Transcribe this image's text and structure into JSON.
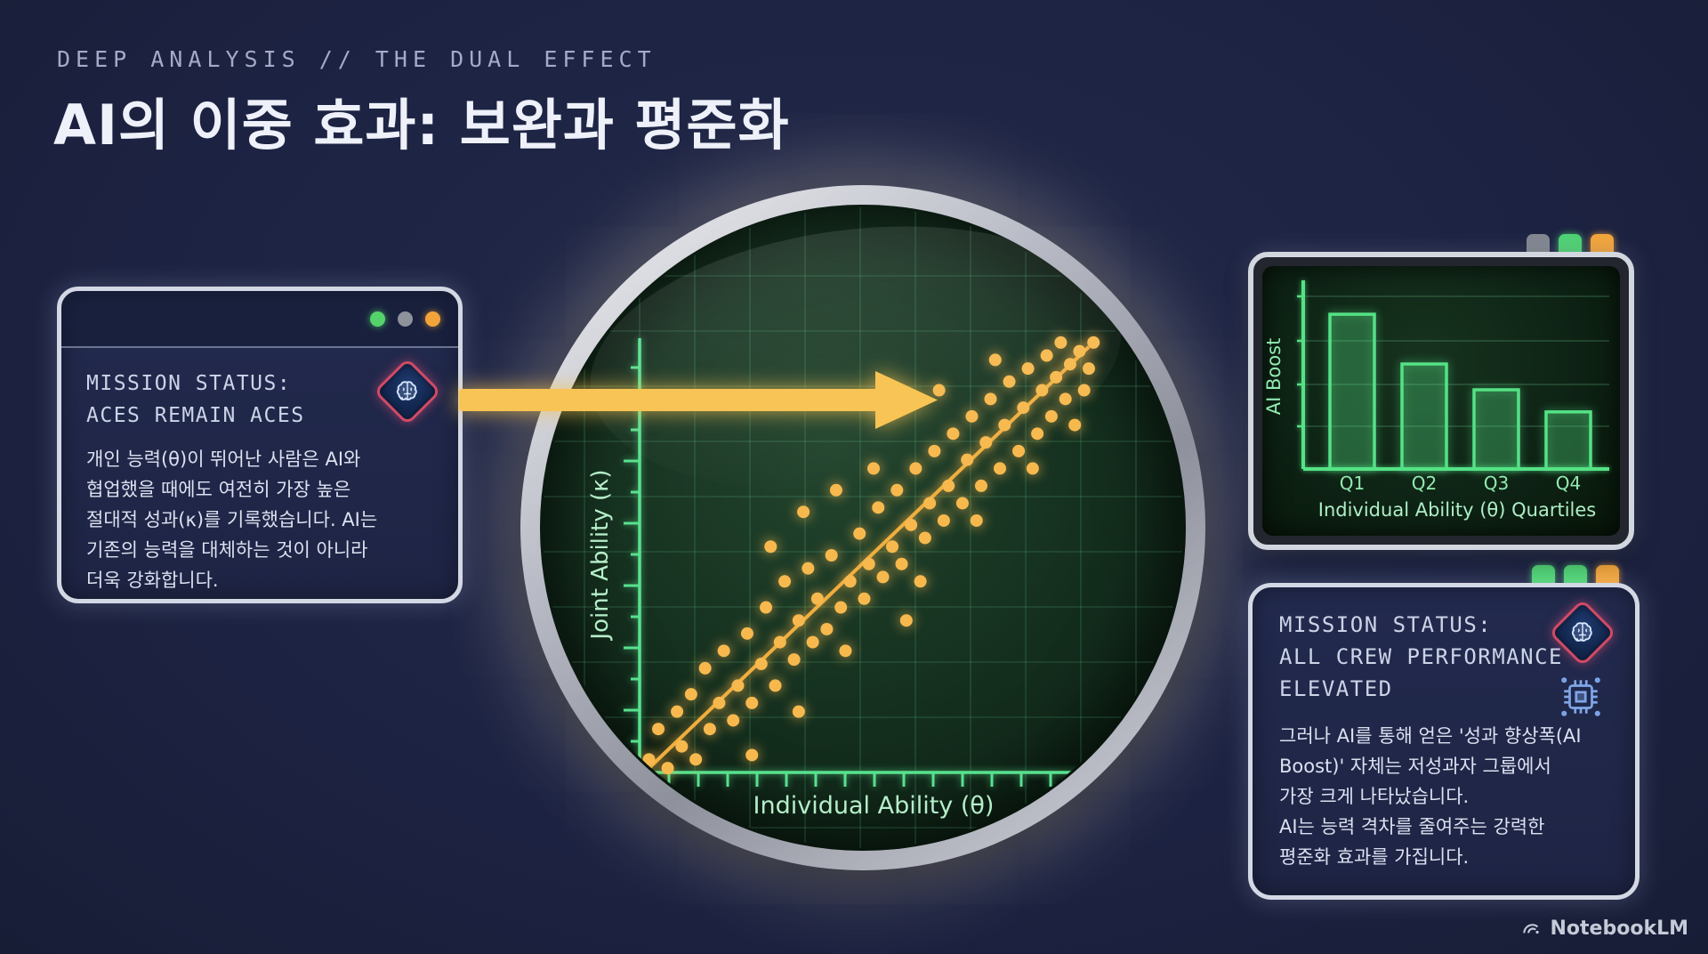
{
  "header": {
    "kicker": "DEEP ANALYSIS // THE DUAL EFFECT",
    "title": "AI의 이중 효과: 보완과 평준화"
  },
  "left_panel": {
    "title_lines": [
      "MISSION STATUS:",
      "ACES REMAIN ACES"
    ],
    "body_lines": [
      "개인 능력(θ)이 뛰어난 사람은 AI와",
      "협업했을 때에도 여전히 가장 높은",
      "절대적 성과(κ)를 기록했습니다. AI는",
      "기존의 능력을 대체하는 것이 아니라",
      "더욱 강화합니다."
    ],
    "traffic_lights": [
      "green",
      "gray",
      "orange"
    ],
    "badge_icon": "brain-diamond-icon"
  },
  "right_top_panel": {
    "tabs": [
      "gray",
      "green",
      "orange"
    ]
  },
  "right_bottom_panel": {
    "title_lines": [
      "MISSION STATUS:",
      "ALL CREW PERFORMANCE",
      "ELEVATED"
    ],
    "body_lines": [
      "그러나 AI를 통해 얻은 '성과 향상폭(AI",
      "Boost)' 자체는 저성과자 그룹에서",
      "가장 크게 나타났습니다.",
      "AI는 능력 격차를 줄여주는 강력한",
      "평준화 효과를 가집니다."
    ],
    "tabs": [
      "green",
      "green",
      "orange"
    ],
    "icons": [
      "brain-diamond-icon",
      "chip-icon"
    ]
  },
  "footer": {
    "brand": "NotebookLM"
  },
  "colors": {
    "background_navy": "#1d2343",
    "panel_border": "#d3d8e4",
    "accent_amber": "#f8c455",
    "crt_green": "#55e286",
    "badge_red": "#d04a66",
    "icon_blue": "#7fa6e8"
  },
  "chart_data": [
    {
      "type": "scatter",
      "xlabel": "Individual Ability (θ)",
      "ylabel": "Joint Ability (κ)",
      "x_range": [
        0,
        100
      ],
      "y_range": [
        0,
        100
      ],
      "grid": true,
      "point_color": "#f7b94e",
      "trend_line": {
        "x1": 2,
        "y1": 1,
        "x2": 96,
        "y2": 98,
        "color": "#f0ae3e"
      },
      "points": [
        [
          2,
          3
        ],
        [
          4,
          10
        ],
        [
          6,
          1
        ],
        [
          8,
          14
        ],
        [
          9,
          6
        ],
        [
          11,
          18
        ],
        [
          12,
          3
        ],
        [
          14,
          24
        ],
        [
          15,
          10
        ],
        [
          17,
          16
        ],
        [
          18,
          28
        ],
        [
          20,
          12
        ],
        [
          21,
          20
        ],
        [
          23,
          32
        ],
        [
          24,
          16
        ],
        [
          26,
          25
        ],
        [
          27,
          38
        ],
        [
          29,
          20
        ],
        [
          30,
          30
        ],
        [
          31,
          44
        ],
        [
          33,
          26
        ],
        [
          34,
          35
        ],
        [
          36,
          47
        ],
        [
          37,
          30
        ],
        [
          38,
          40
        ],
        [
          40,
          33
        ],
        [
          41,
          50
        ],
        [
          43,
          38
        ],
        [
          44,
          28
        ],
        [
          45,
          44
        ],
        [
          47,
          55
        ],
        [
          48,
          40
        ],
        [
          49,
          48
        ],
        [
          51,
          61
        ],
        [
          52,
          45
        ],
        [
          54,
          52
        ],
        [
          55,
          65
        ],
        [
          56,
          48
        ],
        [
          58,
          57
        ],
        [
          59,
          70
        ],
        [
          61,
          54
        ],
        [
          62,
          62
        ],
        [
          63,
          74
        ],
        [
          65,
          58
        ],
        [
          66,
          66
        ],
        [
          67,
          78
        ],
        [
          69,
          62
        ],
        [
          70,
          72
        ],
        [
          71,
          82
        ],
        [
          73,
          66
        ],
        [
          74,
          76
        ],
        [
          75,
          86
        ],
        [
          77,
          70
        ],
        [
          78,
          80
        ],
        [
          79,
          90
        ],
        [
          81,
          74
        ],
        [
          82,
          84
        ],
        [
          83,
          93
        ],
        [
          85,
          78
        ],
        [
          86,
          88
        ],
        [
          87,
          96
        ],
        [
          88,
          82
        ],
        [
          89,
          91
        ],
        [
          90,
          99
        ],
        [
          91,
          86
        ],
        [
          92,
          94
        ],
        [
          93,
          80
        ],
        [
          94,
          97
        ],
        [
          95,
          88
        ],
        [
          96,
          93
        ],
        [
          97,
          99
        ],
        [
          84,
          70
        ],
        [
          72,
          58
        ],
        [
          60,
          44
        ],
        [
          50,
          70
        ],
        [
          35,
          60
        ],
        [
          28,
          52
        ],
        [
          42,
          65
        ],
        [
          64,
          88
        ],
        [
          76,
          95
        ],
        [
          34,
          14
        ],
        [
          24,
          4
        ],
        [
          57,
          35
        ]
      ]
    },
    {
      "type": "bar",
      "categories": [
        "Q1",
        "Q2",
        "Q3",
        "Q4"
      ],
      "values": [
        84,
        57,
        43,
        31
      ],
      "ylim": [
        0,
        100
      ],
      "xlabel": "Individual Ability (θ) Quartiles",
      "ylabel": "AI Boost",
      "bar_color": "#55e286",
      "grid": true,
      "legend_position": "none"
    }
  ]
}
